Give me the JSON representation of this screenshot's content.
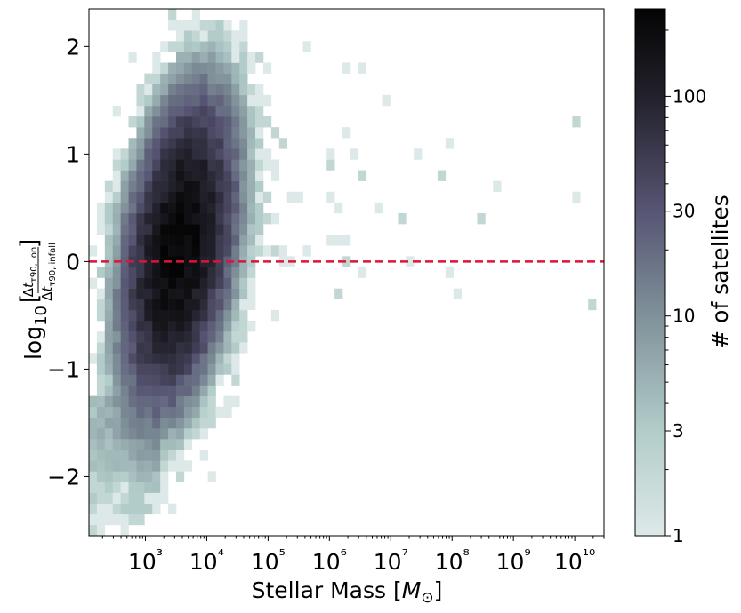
{
  "chart_data": {
    "type": "heatmap",
    "title": "",
    "xlabel": "Stellar Mass [M⊙]",
    "ylabel": "log10 [ Δtτ90,ion / Δtτ90,infall ]",
    "x_scale": "log",
    "xlim": [
      120.0,
      30000000000.0
    ],
    "ylim": [
      -2.55,
      2.35
    ],
    "x_ticks": [
      {
        "value": 1000.0,
        "label": "10³"
      },
      {
        "value": 10000.0,
        "label": "10⁴"
      },
      {
        "value": 100000.0,
        "label": "10⁵"
      },
      {
        "value": 1000000.0,
        "label": "10⁶"
      },
      {
        "value": 10000000.0,
        "label": "10⁷"
      },
      {
        "value": 100000000.0,
        "label": "10⁸"
      },
      {
        "value": 1000000000.0,
        "label": "10⁹"
      },
      {
        "value": 10000000000.0,
        "label": "10¹⁰"
      }
    ],
    "y_ticks": [
      {
        "value": 2,
        "label": "2"
      },
      {
        "value": 1,
        "label": "1"
      },
      {
        "value": 0,
        "label": "0"
      },
      {
        "value": -1,
        "label": "−1"
      },
      {
        "value": -2,
        "label": "−2"
      }
    ],
    "reference_line": {
      "y": 0,
      "style": "dashed",
      "color": "#dc143c"
    },
    "colormap": "bone_r",
    "colorbar": {
      "label": "# of satellites",
      "scale": "log",
      "range": [
        1,
        250
      ],
      "ticks": [
        {
          "value": 1,
          "label": "1"
        },
        {
          "value": 3,
          "label": "3"
        },
        {
          "value": 10,
          "label": "10"
        },
        {
          "value": 30,
          "label": "30"
        },
        {
          "value": 100,
          "label": "100"
        }
      ]
    },
    "density_peak": {
      "log10_mass": 3.55,
      "y": 0.15,
      "count": 250
    },
    "grid": false
  },
  "colors": {
    "cmap_low": "#d6e4e2",
    "cmap_mid": "#8ea7ab",
    "cmap_upper": "#4a4866",
    "cmap_high": "#050505",
    "reference_line": "#dc143c"
  }
}
